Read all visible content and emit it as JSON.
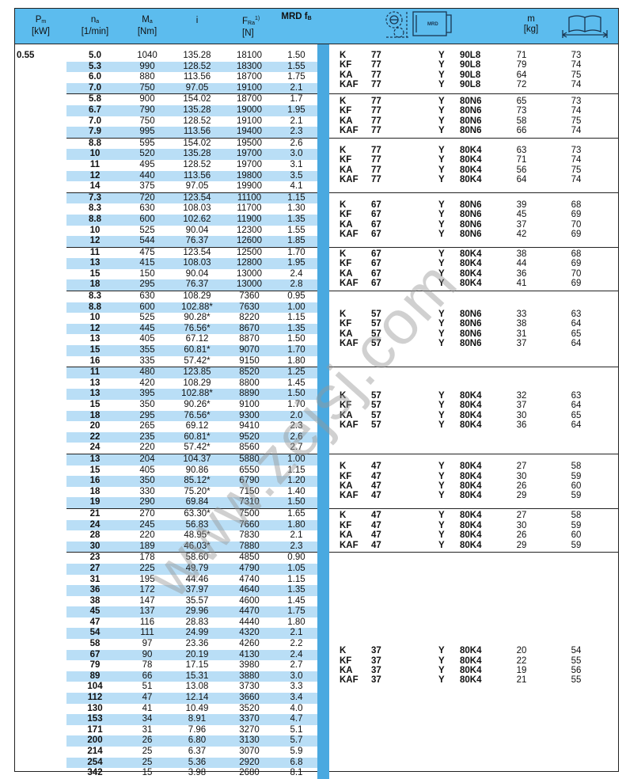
{
  "header": {
    "pm": {
      "main": "P",
      "sub": "m",
      "unit": "[kW]"
    },
    "na": {
      "main": "n",
      "sub": "a",
      "unit": "[1/min]"
    },
    "ma": {
      "main": "M",
      "sub": "a",
      "unit": "[Nm]"
    },
    "i": {
      "main": "i"
    },
    "fra": {
      "main": "F",
      "sub": "Ra",
      "sup": "1)",
      "unit": "[N]"
    },
    "mrd": {
      "main": "MRD f",
      "sub": "B"
    },
    "gearmotor_icon": "gear-motor-icon",
    "gearmotor_label": "MRD",
    "mass": {
      "main": "m",
      "unit": "[kg]"
    },
    "dimension_icon": "book-dimension-icon"
  },
  "power": "0.55",
  "colors": {
    "header": "#5cbcee",
    "stripe": "#b9def6",
    "bar": "#4aa9e0"
  },
  "groups": [
    {
      "rows": [
        [
          "5.0",
          "1040",
          "135.28",
          "18100",
          "1.50"
        ],
        [
          "5.3",
          "990",
          "128.52",
          "18300",
          "1.55"
        ],
        [
          "6.0",
          "880",
          "113.56",
          "18700",
          "1.75"
        ],
        [
          "7.0",
          "750",
          "97.05",
          "19100",
          "2.1"
        ]
      ],
      "models": [
        [
          "K",
          "77",
          "Y",
          "90L8",
          "71",
          "73"
        ],
        [
          "KF",
          "77",
          "Y",
          "90L8",
          "79",
          "74"
        ],
        [
          "KA",
          "77",
          "Y",
          "90L8",
          "64",
          "75"
        ],
        [
          "KAF",
          "77",
          "Y",
          "90L8",
          "72",
          "74"
        ]
      ]
    },
    {
      "rows": [
        [
          "5.8",
          "900",
          "154.02",
          "18700",
          "1.7"
        ],
        [
          "6.7",
          "790",
          "135.28",
          "19000",
          "1.95"
        ],
        [
          "7.0",
          "750",
          "128.52",
          "19100",
          "2.1"
        ],
        [
          "7.9",
          "995",
          "113.56",
          "19400",
          "2.3"
        ]
      ],
      "models": [
        [
          "K",
          "77",
          "Y",
          "80N6",
          "65",
          "73"
        ],
        [
          "KF",
          "77",
          "Y",
          "80N6",
          "73",
          "74"
        ],
        [
          "KA",
          "77",
          "Y",
          "80N6",
          "58",
          "75"
        ],
        [
          "KAF",
          "77",
          "Y",
          "80N6",
          "66",
          "74"
        ]
      ]
    },
    {
      "rows": [
        [
          "8.8",
          "595",
          "154.02",
          "19500",
          "2.6"
        ],
        [
          "10",
          "520",
          "135.28",
          "19700",
          "3.0"
        ],
        [
          "11",
          "495",
          "128.52",
          "19700",
          "3.1"
        ],
        [
          "12",
          "440",
          "113.56",
          "19800",
          "3.5"
        ],
        [
          "14",
          "375",
          "97.05",
          "19900",
          "4.1"
        ]
      ],
      "models": [
        [
          "K",
          "77",
          "Y",
          "80K4",
          "63",
          "73"
        ],
        [
          "KF",
          "77",
          "Y",
          "80K4",
          "71",
          "74"
        ],
        [
          "KA",
          "77",
          "Y",
          "80K4",
          "56",
          "75"
        ],
        [
          "KAF",
          "77",
          "Y",
          "80K4",
          "64",
          "74"
        ]
      ]
    },
    {
      "rows": [
        [
          "7.3",
          "720",
          "123.54",
          "11100",
          "1.15"
        ],
        [
          "8.3",
          "630",
          "108.03",
          "11700",
          "1.30"
        ],
        [
          "8.8",
          "600",
          "102.62",
          "11900",
          "1.35"
        ],
        [
          "10",
          "525",
          "90.04",
          "12300",
          "1.55"
        ],
        [
          "12",
          "544",
          "76.37",
          "12600",
          "1.85"
        ]
      ],
      "models": [
        [
          "K",
          "67",
          "Y",
          "80N6",
          "39",
          "68"
        ],
        [
          "KF",
          "67",
          "Y",
          "80N6",
          "45",
          "69"
        ],
        [
          "KA",
          "67",
          "Y",
          "80N6",
          "37",
          "70"
        ],
        [
          "KAF",
          "67",
          "Y",
          "80N6",
          "42",
          "69"
        ]
      ]
    },
    {
      "rows": [
        [
          "11",
          "475",
          "123.54",
          "12500",
          "1.70"
        ],
        [
          "13",
          "415",
          "108.03",
          "12800",
          "1.95"
        ],
        [
          "15",
          "150",
          "90.04",
          "13000",
          "2.4"
        ],
        [
          "18",
          "295",
          "76.37",
          "13000",
          "2.8"
        ]
      ],
      "models": [
        [
          "K",
          "67",
          "Y",
          "80K4",
          "38",
          "68"
        ],
        [
          "KF",
          "67",
          "Y",
          "80K4",
          "44",
          "69"
        ],
        [
          "KA",
          "67",
          "Y",
          "80K4",
          "36",
          "70"
        ],
        [
          "KAF",
          "67",
          "Y",
          "80K4",
          "41",
          "69"
        ]
      ]
    },
    {
      "rows": [
        [
          "8.3",
          "630",
          "108.29",
          "7360",
          "0.95"
        ],
        [
          "8.8",
          "600",
          "102.88*",
          "7630",
          "1.00"
        ],
        [
          "10",
          "525",
          "90.28*",
          "8220",
          "1.15"
        ],
        [
          "12",
          "445",
          "76.56*",
          "8670",
          "1.35"
        ],
        [
          "13",
          "405",
          "67.12",
          "8870",
          "1.50"
        ],
        [
          "15",
          "355",
          "60.81*",
          "9070",
          "1.70"
        ],
        [
          "16",
          "335",
          "57.42*",
          "9150",
          "1.80"
        ]
      ],
      "models": [
        [
          "K",
          "57",
          "Y",
          "80N6",
          "33",
          "63"
        ],
        [
          "KF",
          "57",
          "Y",
          "80N6",
          "38",
          "64"
        ],
        [
          "KA",
          "57",
          "Y",
          "80N6",
          "31",
          "65"
        ],
        [
          "KAF",
          "57",
          "Y",
          "80N6",
          "37",
          "64"
        ]
      ]
    },
    {
      "rows": [
        [
          "11",
          "480",
          "123.85",
          "8520",
          "1.25"
        ],
        [
          "13",
          "420",
          "108.29",
          "8800",
          "1.45"
        ],
        [
          "13",
          "395",
          "102.88*",
          "8890",
          "1.50"
        ],
        [
          "15",
          "350",
          "90.26*",
          "9100",
          "1.70"
        ],
        [
          "18",
          "295",
          "76.56*",
          "9300",
          "2.0"
        ],
        [
          "20",
          "265",
          "69.12",
          "9410",
          "2.3"
        ],
        [
          "22",
          "235",
          "60.81*",
          "9520",
          "2.6"
        ],
        [
          "24",
          "220",
          "57.42*",
          "8560",
          "2.7"
        ]
      ],
      "models": [
        [
          "K",
          "57",
          "Y",
          "80K4",
          "32",
          "63"
        ],
        [
          "KF",
          "57",
          "Y",
          "80K4",
          "37",
          "64"
        ],
        [
          "KA",
          "57",
          "Y",
          "80K4",
          "30",
          "65"
        ],
        [
          "KAF",
          "57",
          "Y",
          "80K4",
          "36",
          "64"
        ]
      ]
    },
    {
      "rows": [
        [
          "13",
          "204",
          "104.37",
          "5880",
          "1.00"
        ],
        [
          "15",
          "405",
          "90.86",
          "6550",
          "1.15"
        ],
        [
          "16",
          "350",
          "85.12*",
          "6790",
          "1.20"
        ],
        [
          "18",
          "330",
          "75.20*",
          "7150",
          "1.40"
        ],
        [
          "19",
          "290",
          "69.84",
          "7310",
          "1.50"
        ]
      ],
      "models": [
        [
          "K",
          "47",
          "Y",
          "80K4",
          "27",
          "58"
        ],
        [
          "KF",
          "47",
          "Y",
          "80K4",
          "30",
          "59"
        ],
        [
          "KA",
          "47",
          "Y",
          "80K4",
          "26",
          "60"
        ],
        [
          "KAF",
          "47",
          "Y",
          "80K4",
          "29",
          "59"
        ]
      ]
    },
    {
      "rows": [
        [
          "21",
          "270",
          "63.30*",
          "7500",
          "1.65"
        ],
        [
          "24",
          "245",
          "56.83",
          "7660",
          "1.80"
        ],
        [
          "28",
          "220",
          "48.95*",
          "7830",
          "2.1"
        ],
        [
          "30",
          "189",
          "46.03*",
          "7880",
          "2.3"
        ]
      ],
      "models": [
        [
          "K",
          "47",
          "Y",
          "80K4",
          "27",
          "58"
        ],
        [
          "KF",
          "47",
          "Y",
          "80K4",
          "30",
          "59"
        ],
        [
          "KA",
          "47",
          "Y",
          "80K4",
          "26",
          "60"
        ],
        [
          "KAF",
          "47",
          "Y",
          "80K4",
          "29",
          "59"
        ]
      ]
    },
    {
      "rows": [
        [
          "23",
          "178",
          "58.60",
          "4850",
          "0.90"
        ],
        [
          "27",
          "225",
          "49.79",
          "4790",
          "1.05"
        ],
        [
          "31",
          "195",
          "44.46",
          "4740",
          "1.15"
        ],
        [
          "36",
          "172",
          "37.97",
          "4640",
          "1.35"
        ],
        [
          "38",
          "147",
          "35.57",
          "4600",
          "1.45"
        ],
        [
          "45",
          "137",
          "29.96",
          "4470",
          "1.75"
        ],
        [
          "47",
          "116",
          "28.83",
          "4440",
          "1.80"
        ],
        [
          "54",
          "111",
          "24.99",
          "4320",
          "2.1"
        ],
        [
          "58",
          "97",
          "23.36",
          "4260",
          "2.2"
        ],
        [
          "67",
          "90",
          "20.19",
          "4130",
          "2.4"
        ],
        [
          "79",
          "78",
          "17.15",
          "3980",
          "2.7"
        ],
        [
          "89",
          "66",
          "15.31",
          "3880",
          "3.0"
        ],
        [
          "104",
          "51",
          "13.08",
          "3730",
          "3.3"
        ],
        [
          "112",
          "47",
          "12.14",
          "3660",
          "3.4"
        ],
        [
          "130",
          "41",
          "10.49",
          "3520",
          "4.0"
        ],
        [
          "153",
          "34",
          "8.91",
          "3370",
          "4.7"
        ],
        [
          "171",
          "31",
          "7.96",
          "3270",
          "5.1"
        ],
        [
          "200",
          "26",
          "6.80",
          "3130",
          "5.7"
        ],
        [
          "214",
          "25",
          "6.37",
          "3070",
          "5.9"
        ],
        [
          "254",
          "25",
          "5.36",
          "2920",
          "6.8"
        ],
        [
          "342",
          "15",
          "3.98",
          "2680",
          "8.1"
        ]
      ],
      "models": [
        [
          "K",
          "37",
          "Y",
          "80K4",
          "20",
          "54"
        ],
        [
          "KF",
          "37",
          "Y",
          "80K4",
          "22",
          "55"
        ],
        [
          "KA",
          "37",
          "Y",
          "80K4",
          "19",
          "56"
        ],
        [
          "KAF",
          "37",
          "Y",
          "80K4",
          "21",
          "55"
        ]
      ]
    }
  ],
  "watermark": "www.zejsj.com"
}
